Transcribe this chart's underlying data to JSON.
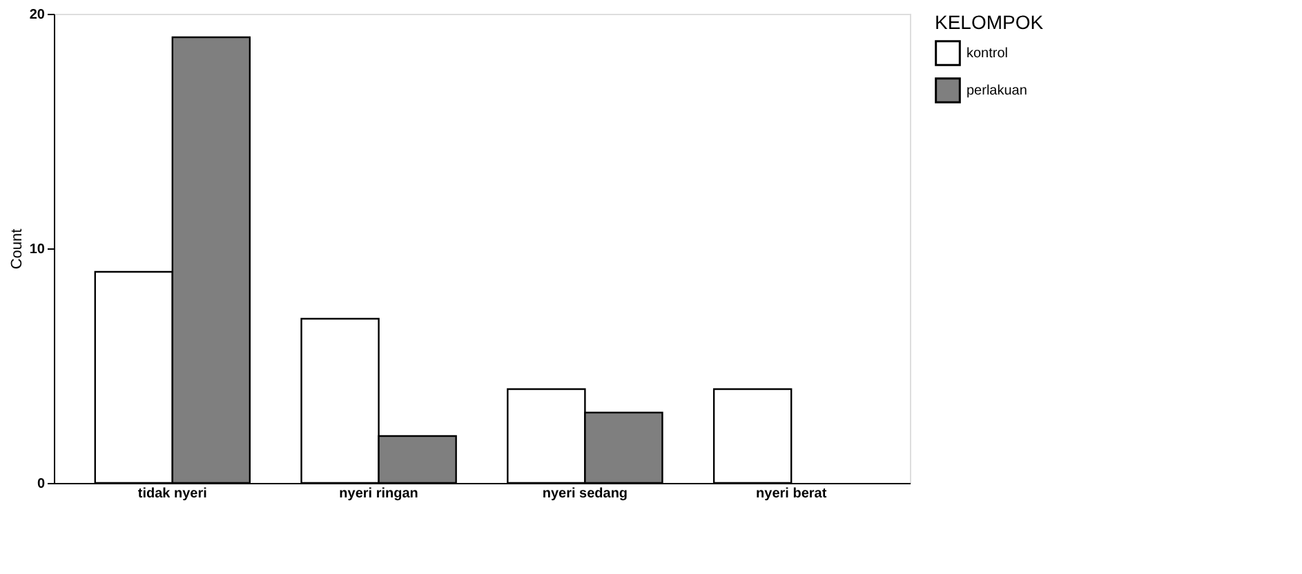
{
  "chart_data": {
    "type": "bar",
    "ylabel": "Count",
    "legend_title": "KELOMPOK",
    "legend": "right",
    "grid": false,
    "categories": [
      "tidak nyeri",
      "nyeri ringan",
      "nyeri sedang",
      "nyeri berat"
    ],
    "series": [
      {
        "name": "kontrol",
        "color": "#ffffff",
        "values": [
          9,
          7,
          4,
          4
        ]
      },
      {
        "name": "perlakuan",
        "color": "#7f7f7f",
        "values": [
          19,
          2,
          3,
          null
        ]
      }
    ],
    "ylim": [
      0,
      20
    ],
    "yticks": [
      0,
      10,
      20
    ]
  }
}
